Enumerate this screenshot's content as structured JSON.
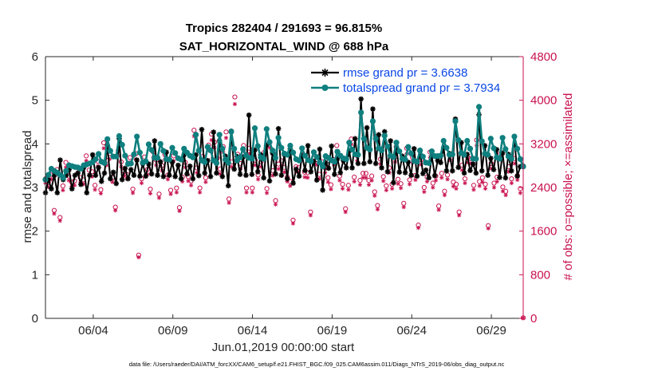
{
  "chart_data": {
    "type": "line",
    "title": "Tropics 282404 / 291693 = 96.815%",
    "subtitle": "SAT_HORIZONTAL_WIND @ 688 hPa",
    "xlabel": "Jun.01,2019 00:00:00 start",
    "ylabel": "rmse and totalspread",
    "ylabel_right": "# of obs: o=possible; ×=assimilated",
    "footnote": "data file: /Users/raeder/DAI/ATM_forcXX/CAM6_setup/f.e21.FHIST_BGC.f09_025.CAM6assim.011/Diags_NTrS_2019-06/obs_diag_output.nc",
    "x_range": [
      1.0,
      31.0
    ],
    "ylim": [
      0,
      6
    ],
    "ylim_right": [
      0,
      4800
    ],
    "x_ticks": [
      {
        "value": 4,
        "label": "06/04"
      },
      {
        "value": 9,
        "label": "06/09"
      },
      {
        "value": 14,
        "label": "06/14"
      },
      {
        "value": 19,
        "label": "06/19"
      },
      {
        "value": 24,
        "label": "06/24"
      },
      {
        "value": 29,
        "label": "06/29"
      }
    ],
    "y_ticks": [
      "0",
      "1",
      "2",
      "3",
      "4",
      "5",
      "6"
    ],
    "y_ticks_right": [
      "0",
      "800",
      "1600",
      "2400",
      "3200",
      "4000",
      "4800"
    ],
    "grid": false,
    "legend_position": "top-right",
    "colors": {
      "rmse": "#000000",
      "totalspread": "#0f7f7f",
      "obs": "#c8124f",
      "legend_text": "#0a47e6"
    },
    "series": [
      {
        "name": "rmse grand pr = 3.6638",
        "values": [
          2.88,
          3.18,
          2.97,
          3.28,
          2.88,
          3.63,
          3.18,
          3.28,
          3.41,
          2.97,
          3.28,
          3.33,
          3.07,
          3.46,
          2.88,
          3.28,
          3.75,
          3.28,
          3.46,
          3.14,
          3.33,
          3.97,
          3.2,
          3.35,
          3.09,
          4.12,
          3.18,
          3.44,
          3.2,
          3.41,
          3.28,
          3.63,
          3.26,
          3.55,
          3.26,
          3.54,
          3.31,
          4.07,
          3.28,
          3.59,
          3.25,
          3.81,
          3.28,
          3.58,
          3.25,
          3.51,
          3.2,
          3.75,
          3.31,
          3.49,
          3.2,
          3.75,
          3.27,
          4.33,
          3.33,
          3.62,
          3.25,
          4.27,
          3.33,
          4.07,
          3.25,
          3.72,
          3.04,
          4.29,
          3.42,
          3.71,
          3.3,
          3.7,
          3.28,
          4.66,
          3.3,
          3.86,
          3.36,
          3.75,
          3.22,
          3.97,
          3.15,
          3.79,
          3.31,
          4.35,
          3.28,
          3.76,
          3.2,
          3.89,
          3.1,
          3.42,
          3.26,
          3.73,
          3.39,
          3.96,
          3.36,
          3.6,
          3.17,
          3.88,
          2.94,
          3.57,
          3.44,
          3.95,
          3.3,
          3.66,
          3.34,
          3.62,
          3.45,
          3.84,
          3.45,
          4.12,
          3.55,
          5.03,
          3.55,
          4.37,
          3.59,
          4.8,
          3.55,
          4.21,
          3.45,
          4.28,
          3.36,
          4.07,
          3.11,
          3.93,
          3.35,
          3.72,
          3.34,
          3.58,
          3.28,
          3.89,
          3.26,
          3.84,
          3.32,
          3.4,
          3.22,
          3.72,
          3.27,
          3.62,
          3.57,
          3.91,
          3.38,
          3.78,
          3.38,
          4.57,
          3.46,
          4.03,
          3.33,
          3.76,
          3.39,
          3.54,
          3.33,
          4.67,
          3.38,
          3.96,
          3.28,
          3.67,
          3.41,
          3.87,
          3.23,
          3.79,
          3.22,
          3.76,
          3.38,
          4.17,
          3.26,
          3.48,
          3.49
        ]
      },
      {
        "name": "totalspread grand pr = 3.7934",
        "values": [
          3.18,
          3.29,
          3.43,
          3.38,
          3.34,
          3.29,
          3.22,
          3.38,
          3.51,
          3.49,
          3.47,
          3.46,
          3.43,
          3.51,
          3.53,
          3.55,
          3.58,
          3.65,
          3.77,
          3.59,
          3.56,
          4.11,
          3.84,
          3.71,
          3.71,
          4.18,
          3.98,
          3.73,
          3.54,
          3.55,
          3.76,
          4.17,
          3.8,
          3.57,
          3.6,
          3.99,
          3.86,
          3.68,
          3.68,
          4.0,
          3.84,
          3.65,
          3.64,
          3.91,
          3.79,
          3.67,
          3.64,
          3.89,
          3.8,
          3.73,
          3.69,
          4.21,
          3.85,
          3.62,
          3.58,
          3.93,
          3.85,
          3.62,
          3.56,
          4.21,
          3.89,
          3.64,
          3.57,
          4.28,
          3.89,
          3.62,
          3.69,
          3.88,
          3.74,
          3.68,
          3.66,
          4.36,
          3.95,
          3.69,
          3.66,
          4.34,
          4.04,
          3.85,
          3.68,
          4.14,
          3.91,
          3.78,
          3.75,
          3.96,
          3.8,
          3.65,
          3.62,
          3.9,
          3.73,
          3.63,
          3.6,
          3.81,
          3.7,
          3.57,
          3.48,
          3.72,
          3.68,
          3.62,
          3.59,
          3.82,
          3.73,
          3.67,
          3.65,
          4.03,
          3.87,
          3.76,
          3.75,
          4.72,
          4.12,
          3.91,
          3.87,
          4.52,
          4.12,
          3.9,
          3.85,
          4.19,
          3.94,
          3.73,
          3.7,
          4.03,
          3.83,
          3.66,
          3.64,
          3.93,
          3.78,
          3.61,
          3.59,
          3.85,
          3.71,
          3.57,
          3.56,
          3.83,
          3.72,
          3.72,
          3.73,
          4.07,
          3.91,
          3.75,
          3.76,
          4.52,
          4.09,
          3.79,
          3.75,
          4.07,
          3.89,
          3.66,
          3.66,
          4.85,
          4.06,
          3.78,
          3.75,
          4.12,
          3.9,
          3.69,
          3.66,
          4.14,
          3.88,
          3.71,
          3.66,
          4.17,
          3.89,
          3.65,
          3.48
        ]
      }
    ],
    "obs_possible": [
      2560,
      2490,
      2630,
      1980,
      2730,
      1850,
      2430,
      2860,
      2610,
      2500,
      2520,
      2760,
      2580,
      2540,
      2980,
      2720,
      2690,
      2440,
      2880,
      2360,
      3220,
      2900,
      3020,
      2580,
      2040,
      3080,
      2870,
      2700,
      2640,
      2950,
      2370,
      3020,
      1160,
      2560,
      2960,
      2730,
      2370,
      3050,
      2900,
      2280,
      2800,
      3000,
      2630,
      2350,
      2980,
      2390,
      2030,
      2590,
      2860,
      2600,
      2520,
      3450,
      2760,
      2390,
      2970,
      2580,
      3180,
      3380,
      3230,
      2940,
      2740,
      3150,
      3420,
      2190,
      2870,
      4060,
      3010,
      2840,
      3170,
      2390,
      3120,
      2390,
      2900,
      2630,
      2870,
      3040,
      2380,
      3230,
      2710,
      2160,
      2830,
      2890,
      2770,
      2590,
      2510,
      1800,
      2780,
      2770,
      3000,
      2680,
      2670,
      1950,
      2940,
      2910,
      2640,
      2870,
      2760,
      2580,
      2450,
      2910,
      3170,
      2610,
      2460,
      2010,
      2440,
      3290,
      2590,
      2980,
      2530,
      2660,
      2660,
      2530,
      2610,
      2320,
      2070,
      2920,
      2600,
      2430,
      2760,
      2460,
      2960,
      2550,
      2470,
      2110,
      3120,
      2540,
      2950,
      2620,
      1710,
      2910,
      2400,
      2590,
      3050,
      2480,
      2610,
      2060,
      2660,
      2330,
      2630,
      2990,
      2500,
      2460,
      1950,
      2810,
      2560,
      2950,
      2930,
      2440,
      3270,
      2510,
      2580,
      2460,
      1700,
      2840,
      2480,
      2590,
      3010,
      2410,
      2330,
      2780,
      2560,
      2930,
      2620,
      2380,
      10
    ],
    "obs_assimilated": [
      2480,
      2410,
      2550,
      1920,
      2640,
      1790,
      2350,
      2770,
      2530,
      2420,
      2440,
      2670,
      2500,
      2460,
      2890,
      2630,
      2600,
      2360,
      2790,
      2290,
      3120,
      2810,
      2920,
      2500,
      1980,
      2980,
      2780,
      2610,
      2560,
      2860,
      2300,
      2920,
      1120,
      2480,
      2870,
      2640,
      2290,
      2950,
      2810,
      2210,
      2710,
      2910,
      2550,
      2280,
      2890,
      2310,
      1970,
      2510,
      2770,
      2520,
      2440,
      3340,
      2670,
      2310,
      2880,
      2500,
      3080,
      3270,
      3130,
      2850,
      2650,
      3050,
      3310,
      2120,
      2780,
      3930,
      2910,
      2750,
      3070,
      2310,
      3020,
      2310,
      2810,
      2550,
      2780,
      2940,
      2300,
      3130,
      2620,
      2090,
      2740,
      2800,
      2680,
      2510,
      2430,
      1740,
      2690,
      2680,
      2900,
      2590,
      2580,
      1890,
      2850,
      2820,
      2560,
      2780,
      2670,
      2500,
      2370,
      2820,
      3070,
      2530,
      2380,
      1950,
      2360,
      3190,
      2510,
      2890,
      2450,
      2580,
      2580,
      2450,
      2530,
      2250,
      2000,
      2830,
      2520,
      2350,
      2670,
      2380,
      2870,
      2470,
      2390,
      2040,
      3020,
      2460,
      2860,
      2540,
      1660,
      2820,
      2320,
      2510,
      2950,
      2400,
      2530,
      1990,
      2580,
      2260,
      2550,
      2900,
      2420,
      2380,
      1890,
      2720,
      2480,
      2860,
      2840,
      2360,
      3170,
      2430,
      2500,
      2380,
      1650,
      2750,
      2400,
      2510,
      2920,
      2330,
      2260,
      2690,
      2480,
      2840,
      2540,
      2300,
      10
    ]
  }
}
